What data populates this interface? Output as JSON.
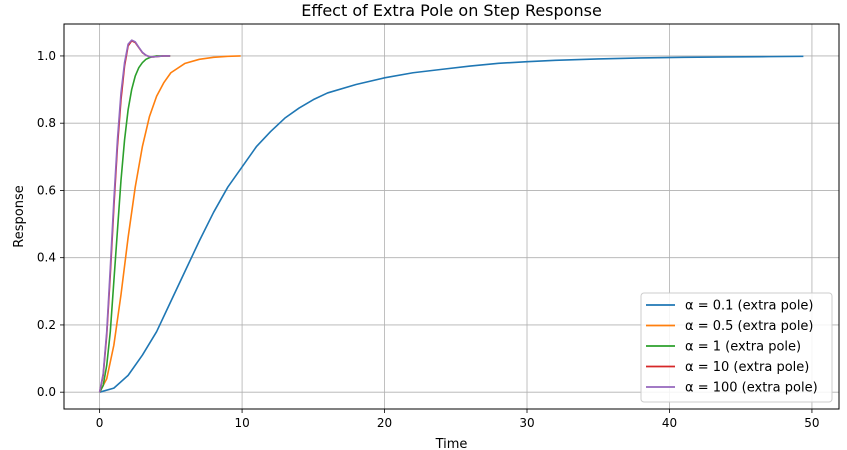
{
  "chart_data": {
    "type": "line",
    "title": "Effect of Extra Pole on Step Response",
    "xlabel": "Time",
    "ylabel": "Response",
    "xlim": [
      -2.5,
      51.9
    ],
    "ylim": [
      -0.05,
      1.095
    ],
    "xticks": [
      0,
      10,
      20,
      30,
      40,
      50
    ],
    "yticks": [
      0.0,
      0.2,
      0.4,
      0.6,
      0.8,
      1.0
    ],
    "xtick_labels": [
      "0",
      "10",
      "20",
      "30",
      "40",
      "50"
    ],
    "ytick_labels": [
      "0.0",
      "0.2",
      "0.4",
      "0.6",
      "0.8",
      "1.0"
    ],
    "grid": true,
    "legend_position": "bottom-right",
    "series": [
      {
        "name": "α = 0.1 (extra pole)",
        "color": "#1f77b4",
        "x": [
          0,
          1,
          2,
          3,
          4,
          5,
          6,
          7,
          8,
          9,
          10,
          11,
          12,
          13,
          14,
          15,
          16,
          18,
          20,
          22,
          24,
          26,
          28,
          30,
          32,
          35,
          38,
          41,
          44,
          47,
          49.4
        ],
        "y": [
          0.0,
          0.012,
          0.05,
          0.11,
          0.18,
          0.27,
          0.36,
          0.45,
          0.535,
          0.61,
          0.67,
          0.73,
          0.775,
          0.815,
          0.845,
          0.87,
          0.89,
          0.915,
          0.935,
          0.95,
          0.96,
          0.97,
          0.978,
          0.983,
          0.987,
          0.991,
          0.994,
          0.996,
          0.997,
          0.998,
          0.999
        ]
      },
      {
        "name": "α = 0.5 (extra pole)",
        "color": "#ff7f0e",
        "x": [
          0,
          0.5,
          1,
          1.5,
          2,
          2.5,
          3,
          3.5,
          4,
          4.5,
          5,
          6,
          7,
          8,
          9,
          9.9
        ],
        "y": [
          0.0,
          0.04,
          0.14,
          0.29,
          0.46,
          0.61,
          0.73,
          0.82,
          0.88,
          0.92,
          0.95,
          0.978,
          0.99,
          0.996,
          0.999,
          1.0
        ]
      },
      {
        "name": "α = 1 (extra pole)",
        "color": "#2ca02c",
        "x": [
          0,
          0.25,
          0.5,
          0.75,
          1,
          1.25,
          1.5,
          1.75,
          2,
          2.25,
          2.5,
          2.75,
          3,
          3.25,
          3.5,
          3.75,
          4,
          4.5,
          4.95
        ],
        "y": [
          0.0,
          0.02,
          0.08,
          0.18,
          0.33,
          0.48,
          0.63,
          0.75,
          0.84,
          0.9,
          0.94,
          0.965,
          0.98,
          0.99,
          0.995,
          0.998,
          1.0,
          1.0,
          1.0
        ]
      },
      {
        "name": "α = 10 (extra pole)",
        "color": "#d62728",
        "x": [
          0,
          0.25,
          0.5,
          0.75,
          1,
          1.25,
          1.5,
          1.75,
          2,
          2.25,
          2.5,
          2.75,
          3,
          3.25,
          3.5,
          3.75,
          4,
          4.5,
          4.95
        ],
        "y": [
          0.0,
          0.05,
          0.17,
          0.35,
          0.55,
          0.73,
          0.87,
          0.97,
          1.03,
          1.045,
          1.04,
          1.025,
          1.01,
          1.002,
          0.998,
          0.997,
          0.998,
          1.0,
          1.0
        ]
      },
      {
        "name": "α = 100 (extra pole)",
        "color": "#9467bd",
        "x": [
          0,
          0.25,
          0.5,
          0.75,
          1,
          1.25,
          1.5,
          1.75,
          2,
          2.25,
          2.5,
          2.75,
          3,
          3.25,
          3.5,
          3.75,
          4,
          4.5,
          4.95
        ],
        "y": [
          0.0,
          0.055,
          0.18,
          0.37,
          0.57,
          0.75,
          0.89,
          0.98,
          1.035,
          1.047,
          1.042,
          1.026,
          1.011,
          1.002,
          0.998,
          0.997,
          0.998,
          1.0,
          1.0
        ]
      }
    ]
  }
}
